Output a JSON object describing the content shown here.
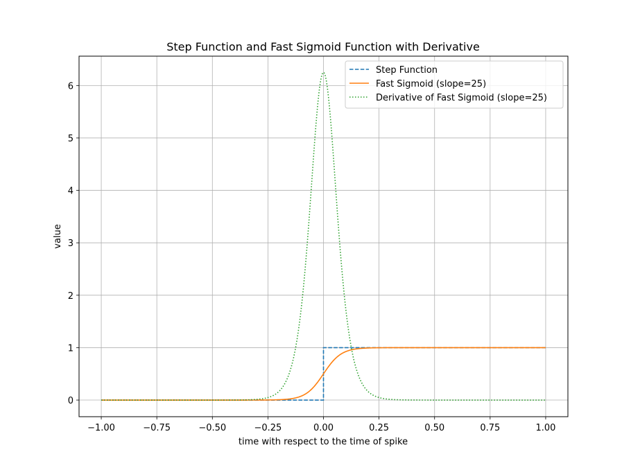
{
  "chart_data": {
    "type": "line",
    "title": "Step Function and Fast Sigmoid Function with Derivative",
    "xlabel": "time with respect to the time of spike",
    "ylabel": "value",
    "xlim": [
      -1.1,
      1.1
    ],
    "ylim": [
      -0.317,
      6.56
    ],
    "x_ticks": [
      -1.0,
      -0.75,
      -0.5,
      -0.25,
      0.0,
      0.25,
      0.5,
      0.75,
      1.0
    ],
    "x_tick_labels": [
      "−1.00",
      "−0.75",
      "−0.50",
      "−0.25",
      "0.00",
      "0.25",
      "0.50",
      "0.75",
      "1.00"
    ],
    "y_ticks": [
      0,
      1,
      2,
      3,
      4,
      5,
      6
    ],
    "y_tick_labels": [
      "0",
      "1",
      "2",
      "3",
      "4",
      "5",
      "6"
    ],
    "grid": true,
    "legend_position": "upper right",
    "x_range": [
      -1.0,
      1.0
    ],
    "series": [
      {
        "name": "Step Function",
        "style": "dashed",
        "color": "#1f77b4",
        "formula": "x < 0 ? 0 : 1",
        "points": [
          [
            -1.0,
            0
          ],
          [
            0.0,
            0
          ],
          [
            0.0,
            1
          ],
          [
            1.0,
            1
          ]
        ]
      },
      {
        "name": "Fast Sigmoid (slope=25)",
        "style": "solid",
        "color": "#ff7f0e",
        "formula": "1/(1+exp(-25x))",
        "slope": 25,
        "points": [
          [
            -1.0,
            0.0
          ],
          [
            -0.25,
            0.002
          ],
          [
            -0.1,
            0.076
          ],
          [
            -0.05,
            0.223
          ],
          [
            0.0,
            0.5
          ],
          [
            0.05,
            0.777
          ],
          [
            0.1,
            0.924
          ],
          [
            0.25,
            0.998
          ],
          [
            1.0,
            1.0
          ]
        ]
      },
      {
        "name": "Derivative of Fast Sigmoid (slope=25)",
        "style": "dotted",
        "color": "#2ca02c",
        "formula": "25*s(x)*(1-s(x))",
        "slope": 25,
        "points": [
          [
            -1.0,
            0.0
          ],
          [
            -0.25,
            0.048
          ],
          [
            -0.1,
            1.77
          ],
          [
            -0.05,
            4.32
          ],
          [
            0.0,
            6.25
          ],
          [
            0.05,
            4.32
          ],
          [
            0.1,
            1.77
          ],
          [
            0.25,
            0.048
          ],
          [
            1.0,
            0.0
          ]
        ]
      }
    ]
  }
}
